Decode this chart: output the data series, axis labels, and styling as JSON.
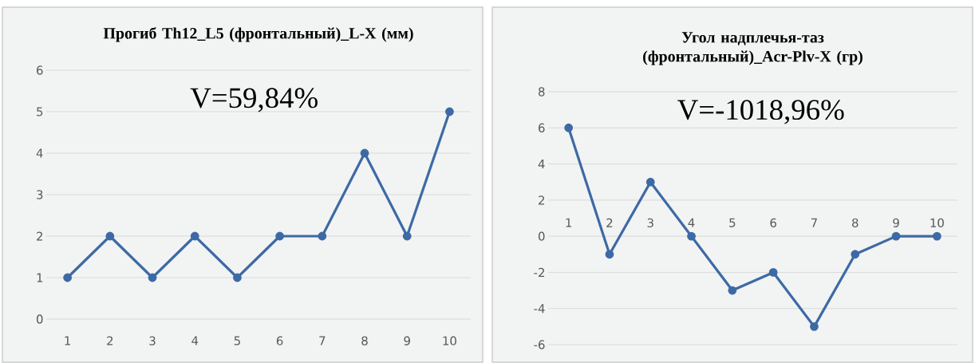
{
  "chart_data": [
    {
      "type": "line",
      "title": "Прогиб Th12_L5 (фронтальный)_L-X (мм)",
      "categories": [
        "1",
        "2",
        "3",
        "4",
        "5",
        "6",
        "7",
        "8",
        "9",
        "10"
      ],
      "series": [
        {
          "color": "#3d6aa5",
          "values": [
            1,
            2,
            1,
            2,
            1,
            2,
            2,
            4,
            2,
            5
          ]
        }
      ],
      "ylim": [
        0,
        6
      ],
      "yticks": [
        0,
        1,
        2,
        3,
        4,
        5,
        6
      ],
      "grid": "y",
      "marker": "circle",
      "line_style": "solid",
      "annotations": [
        "V=59,84%"
      ]
    },
    {
      "type": "line",
      "title": "Угол надплечья-таз (фронтальный)_Acr-Plv-X (гр)",
      "categories": [
        "1",
        "2",
        "3",
        "4",
        "5",
        "6",
        "7",
        "8",
        "9",
        "10"
      ],
      "series": [
        {
          "color": "#3d6aa5",
          "values": [
            6,
            -1,
            3,
            0,
            -3,
            -2,
            -5,
            -1,
            0,
            0
          ]
        }
      ],
      "ylim": [
        -6,
        8
      ],
      "yticks": [
        -6,
        -4,
        -2,
        0,
        2,
        4,
        6,
        8
      ],
      "grid": "y",
      "marker": "circle",
      "line_style": "solid",
      "annotations": [
        "V=-1018,96%"
      ]
    }
  ]
}
